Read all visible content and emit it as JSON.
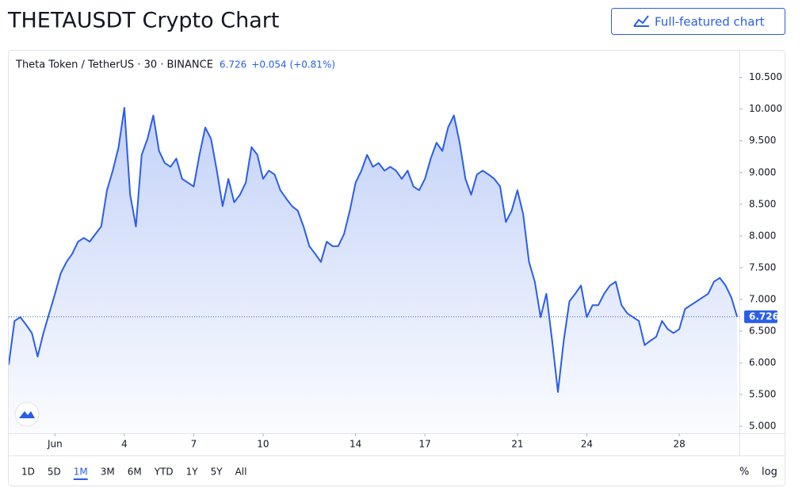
{
  "page": {
    "title": "THETAUSDT Crypto Chart",
    "button": "Full-featured chart"
  },
  "chart_data": {
    "type": "line",
    "symbol": "Theta Token / TetherUS · 30 · BINANCE",
    "last_price": 6.726,
    "change": "+0.054 (+0.81%)",
    "color": "#2a5ee8",
    "x": [
      -1,
      -0.75,
      -0.5,
      -0.25,
      0,
      0.25,
      0.5,
      0.75,
      1,
      1.25,
      1.5,
      1.75,
      2,
      2.25,
      2.5,
      2.75,
      3,
      3.25,
      3.5,
      3.75,
      4,
      4.25,
      4.5,
      4.75,
      5,
      5.25,
      5.5,
      5.75,
      6,
      6.25,
      6.5,
      6.75,
      7,
      7.25,
      7.5,
      7.75,
      8,
      8.25,
      8.5,
      8.75,
      9,
      9.25,
      9.5,
      9.75,
      10,
      10.25,
      10.5,
      10.75,
      11,
      11.25,
      11.5,
      11.75,
      12,
      12.25,
      12.5,
      12.75,
      13,
      13.25,
      13.5,
      13.75,
      14,
      14.25,
      14.5,
      14.75,
      15,
      15.25,
      15.5,
      15.75,
      16,
      16.25,
      16.5,
      16.75,
      17,
      17.25,
      17.5,
      17.75,
      18,
      18.25,
      18.5,
      18.75,
      19,
      19.25,
      19.5,
      19.75,
      20,
      20.25,
      20.5,
      20.75,
      21,
      21.25,
      21.5,
      21.75,
      22,
      22.25,
      22.5,
      22.75,
      23,
      23.25,
      23.5,
      23.75,
      24,
      24.25,
      24.5,
      24.75,
      25,
      25.25,
      25.5,
      25.75,
      26,
      26.25,
      26.5,
      26.75,
      27,
      27.25,
      27.5,
      27.75,
      28,
      28.25,
      28.5,
      28.75,
      29,
      29.25,
      29.5,
      29.75,
      30,
      30.25,
      30.5
    ],
    "values": [
      5.97,
      6.66,
      6.72,
      6.6,
      6.47,
      6.1,
      6.47,
      6.78,
      7.09,
      7.41,
      7.59,
      7.72,
      7.91,
      7.97,
      7.91,
      8.03,
      8.15,
      8.72,
      9.03,
      9.4,
      10.02,
      8.65,
      8.15,
      9.28,
      9.53,
      9.9,
      9.34,
      9.15,
      9.09,
      9.22,
      8.9,
      8.84,
      8.78,
      9.28,
      9.71,
      9.53,
      9.03,
      8.47,
      8.9,
      8.53,
      8.65,
      8.84,
      9.4,
      9.28,
      8.9,
      9.03,
      8.97,
      8.72,
      8.59,
      8.47,
      8.4,
      8.15,
      7.84,
      7.72,
      7.59,
      7.91,
      7.84,
      7.84,
      8.03,
      8.4,
      8.84,
      9.03,
      9.28,
      9.09,
      9.15,
      9.03,
      9.09,
      9.03,
      8.9,
      9.03,
      8.78,
      8.72,
      8.9,
      9.22,
      9.47,
      9.34,
      9.71,
      9.9,
      9.47,
      8.9,
      8.65,
      8.97,
      9.03,
      8.97,
      8.9,
      8.78,
      8.22,
      8.4,
      8.72,
      8.34,
      7.59,
      7.28,
      6.72,
      7.09,
      6.35,
      5.54,
      6.35,
      6.97,
      7.09,
      7.22,
      6.72,
      6.91,
      6.91,
      7.09,
      7.22,
      7.28,
      6.91,
      6.78,
      6.72,
      6.66,
      6.28,
      6.35,
      6.41,
      6.66,
      6.53,
      6.47,
      6.53,
      6.85,
      6.91,
      6.97,
      7.03,
      7.09,
      7.28,
      7.34,
      7.22,
      7.03,
      6.726
    ],
    "xlim": [
      -1,
      30.6
    ],
    "ylim": [
      4.89,
      10.92
    ],
    "xticks": [
      {
        "value": 1,
        "label": "Jun"
      },
      4,
      7,
      10,
      14,
      17,
      21,
      24,
      28
    ],
    "yticks": [
      {
        "value": 5,
        "label": "5.000"
      },
      {
        "value": 5.5,
        "label": "5.500"
      },
      {
        "value": 6,
        "label": "6.000"
      },
      {
        "value": 6.5,
        "label": "6.500"
      },
      {
        "value": 7,
        "label": "7.000"
      },
      {
        "value": 7.5,
        "label": "7.500"
      },
      {
        "value": 8,
        "label": "8.000"
      },
      {
        "value": 8.5,
        "label": "8.500"
      },
      {
        "value": 9,
        "label": "9.000"
      },
      {
        "value": 9.5,
        "label": "9.500"
      },
      {
        "value": 10,
        "label": "10.000"
      },
      {
        "value": 10.5,
        "label": "10.500"
      }
    ],
    "ranges": [
      "1D",
      "5D",
      "1M",
      "3M",
      "6M",
      "YTD",
      "1Y",
      "5Y",
      "All"
    ],
    "active_range": "1M",
    "scale_buttons": [
      "%",
      "log"
    ]
  }
}
